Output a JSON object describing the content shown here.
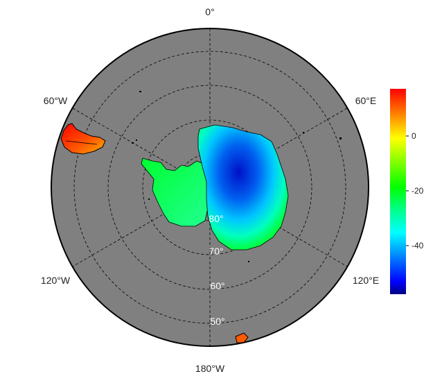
{
  "map": {
    "longitude_labels": [
      "0°",
      "60°E",
      "120°E",
      "180°W",
      "120°W",
      "60°W"
    ],
    "latitude_labels": [
      "80°",
      "70°",
      "60°",
      "50°"
    ],
    "background_color": "#808080",
    "graticule_style": "dashed"
  },
  "colorbar": {
    "ticks": [
      "0",
      "-20",
      "-40"
    ],
    "colors_top_to_bottom": [
      "#ff0000",
      "#ff7f00",
      "#ffff00",
      "#7fff00",
      "#00ff00",
      "#00ff7f",
      "#00ffff",
      "#007fff",
      "#0000ff",
      "#00007f"
    ]
  }
}
